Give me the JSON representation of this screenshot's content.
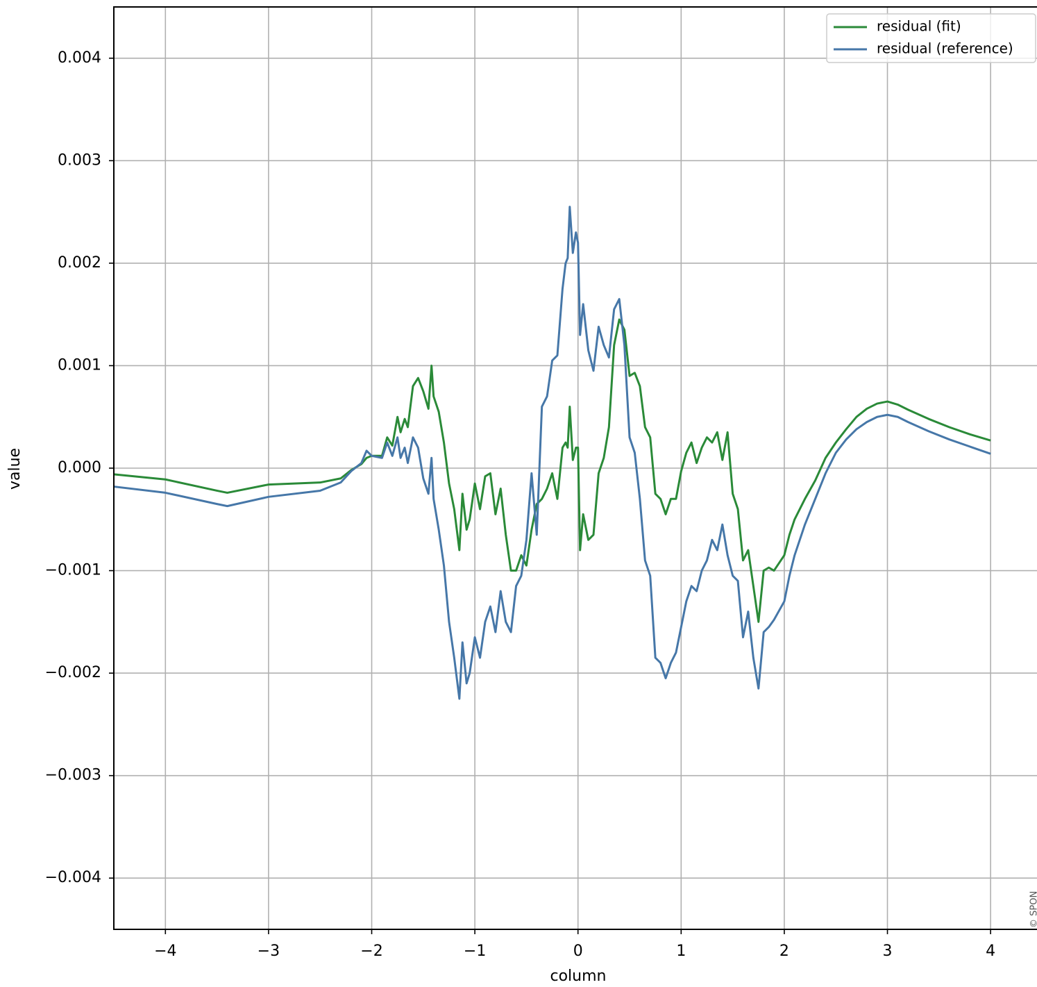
{
  "chart_data": {
    "type": "line",
    "x_label": "column",
    "y_label": "value",
    "xlim": [
      -4.5,
      4.45
    ],
    "ylim": [
      -0.0045,
      0.0045
    ],
    "xticks": [
      {
        "value": -4,
        "label": "−4"
      },
      {
        "value": -3,
        "label": "−3"
      },
      {
        "value": -2,
        "label": "−2"
      },
      {
        "value": -1,
        "label": "−1"
      },
      0,
      1,
      2,
      3,
      4
    ],
    "yticks": [
      {
        "value": -0.004,
        "label": "−0.004"
      },
      {
        "value": -0.003,
        "label": "−0.003"
      },
      {
        "value": -0.002,
        "label": "−0.002"
      },
      {
        "value": -0.001,
        "label": "−0.001"
      },
      {
        "value": 0,
        "label": "0.000"
      },
      0.001,
      0.002,
      0.003,
      0.004
    ],
    "grid": true,
    "legend_loc": "upper right",
    "watermark": "© SPON",
    "x": [
      -4.5,
      -4.0,
      -3.5,
      -3.4,
      -3.0,
      -2.5,
      -2.3,
      -2.2,
      -2.1,
      -2.05,
      -2.0,
      -1.9,
      -1.85,
      -1.8,
      -1.75,
      -1.72,
      -1.68,
      -1.65,
      -1.6,
      -1.55,
      -1.5,
      -1.45,
      -1.42,
      -1.4,
      -1.35,
      -1.3,
      -1.25,
      -1.2,
      -1.15,
      -1.12,
      -1.08,
      -1.05,
      -1.0,
      -0.95,
      -0.9,
      -0.85,
      -0.8,
      -0.75,
      -0.7,
      -0.65,
      -0.6,
      -0.55,
      -0.5,
      -0.45,
      -0.4,
      -0.35,
      -0.3,
      -0.25,
      -0.2,
      -0.15,
      -0.12,
      -0.1,
      -0.08,
      -0.05,
      -0.02,
      0.0,
      0.02,
      0.05,
      0.1,
      0.15,
      0.2,
      0.25,
      0.3,
      0.35,
      0.4,
      0.45,
      0.5,
      0.55,
      0.6,
      0.65,
      0.7,
      0.75,
      0.8,
      0.85,
      0.9,
      0.95,
      1.0,
      1.05,
      1.1,
      1.15,
      1.2,
      1.25,
      1.3,
      1.35,
      1.4,
      1.45,
      1.5,
      1.55,
      1.6,
      1.65,
      1.7,
      1.75,
      1.8,
      1.85,
      1.9,
      2.0,
      2.05,
      2.1,
      2.2,
      2.3,
      2.4,
      2.5,
      2.6,
      2.7,
      2.8,
      2.9,
      3.0,
      3.1,
      3.2,
      3.4,
      3.6,
      3.8,
      4.0
    ],
    "series": [
      {
        "name": "residual (fit)",
        "color": "#2a8a38",
        "values": [
          -6e-05,
          -0.00011,
          -0.00022,
          -0.00024,
          -0.00016,
          -0.00014,
          -0.0001,
          -2e-05,
          4e-05,
          0.0001,
          0.00012,
          0.00012,
          0.0003,
          0.00022,
          0.0005,
          0.00035,
          0.00048,
          0.0004,
          0.0008,
          0.00088,
          0.00075,
          0.00058,
          0.001,
          0.0007,
          0.00055,
          0.00025,
          -0.00015,
          -0.0004,
          -0.0008,
          -0.00025,
          -0.0006,
          -0.0005,
          -0.00015,
          -0.0004,
          -8e-05,
          -5e-05,
          -0.00045,
          -0.0002,
          -0.00065,
          -0.001,
          -0.001,
          -0.00085,
          -0.00095,
          -0.0006,
          -0.00035,
          -0.0003,
          -0.0002,
          -5e-05,
          -0.0003,
          0.0002,
          0.00025,
          0.0002,
          0.0006,
          8e-05,
          0.0002,
          0.0002,
          -0.0008,
          -0.00045,
          -0.0007,
          -0.00065,
          -5e-05,
          0.0001,
          0.0004,
          0.0012,
          0.00145,
          0.00135,
          0.0009,
          0.00093,
          0.0008,
          0.0004,
          0.0003,
          -0.00025,
          -0.0003,
          -0.00045,
          -0.0003,
          -0.0003,
          -3e-05,
          0.00015,
          0.00025,
          5e-05,
          0.0002,
          0.0003,
          0.00025,
          0.00035,
          8e-05,
          0.00035,
          -0.00025,
          -0.0004,
          -0.0009,
          -0.0008,
          -0.00115,
          -0.0015,
          -0.001,
          -0.00097,
          -0.001,
          -0.00085,
          -0.00065,
          -0.0005,
          -0.0003,
          -0.00012,
          0.0001,
          0.00025,
          0.00038,
          0.0005,
          0.00058,
          0.00063,
          0.00065,
          0.00062,
          0.00057,
          0.00048,
          0.0004,
          0.00033,
          0.00027
        ]
      },
      {
        "name": "residual (reference)",
        "color": "#4677a8",
        "values": [
          -0.00018,
          -0.00024,
          -0.00035,
          -0.00037,
          -0.00028,
          -0.00022,
          -0.00014,
          -3e-05,
          5e-05,
          0.00017,
          0.00012,
          0.0001,
          0.00025,
          0.00012,
          0.0003,
          0.0001,
          0.0002,
          5e-05,
          0.0003,
          0.0002,
          -0.0001,
          -0.00025,
          0.0001,
          -0.0003,
          -0.0006,
          -0.00095,
          -0.0015,
          -0.00185,
          -0.00225,
          -0.0017,
          -0.0021,
          -0.002,
          -0.00165,
          -0.00185,
          -0.0015,
          -0.00135,
          -0.0016,
          -0.0012,
          -0.0015,
          -0.0016,
          -0.00115,
          -0.00105,
          -0.0007,
          -5e-05,
          -0.00065,
          0.0006,
          0.0007,
          0.00105,
          0.0011,
          0.00175,
          0.002,
          0.00205,
          0.00255,
          0.0021,
          0.0023,
          0.0022,
          0.0013,
          0.0016,
          0.00115,
          0.00095,
          0.00138,
          0.0012,
          0.00108,
          0.00155,
          0.00165,
          0.0012,
          0.0003,
          0.00015,
          -0.0003,
          -0.0009,
          -0.00105,
          -0.00185,
          -0.0019,
          -0.00205,
          -0.0019,
          -0.0018,
          -0.00155,
          -0.0013,
          -0.00115,
          -0.0012,
          -0.001,
          -0.0009,
          -0.0007,
          -0.0008,
          -0.00055,
          -0.00085,
          -0.00105,
          -0.0011,
          -0.00165,
          -0.0014,
          -0.00185,
          -0.00215,
          -0.0016,
          -0.00155,
          -0.00148,
          -0.0013,
          -0.00105,
          -0.00085,
          -0.00055,
          -0.0003,
          -5e-05,
          0.00015,
          0.00028,
          0.00038,
          0.00045,
          0.0005,
          0.00052,
          0.0005,
          0.00045,
          0.00036,
          0.00028,
          0.00021,
          0.00014
        ]
      }
    ]
  }
}
